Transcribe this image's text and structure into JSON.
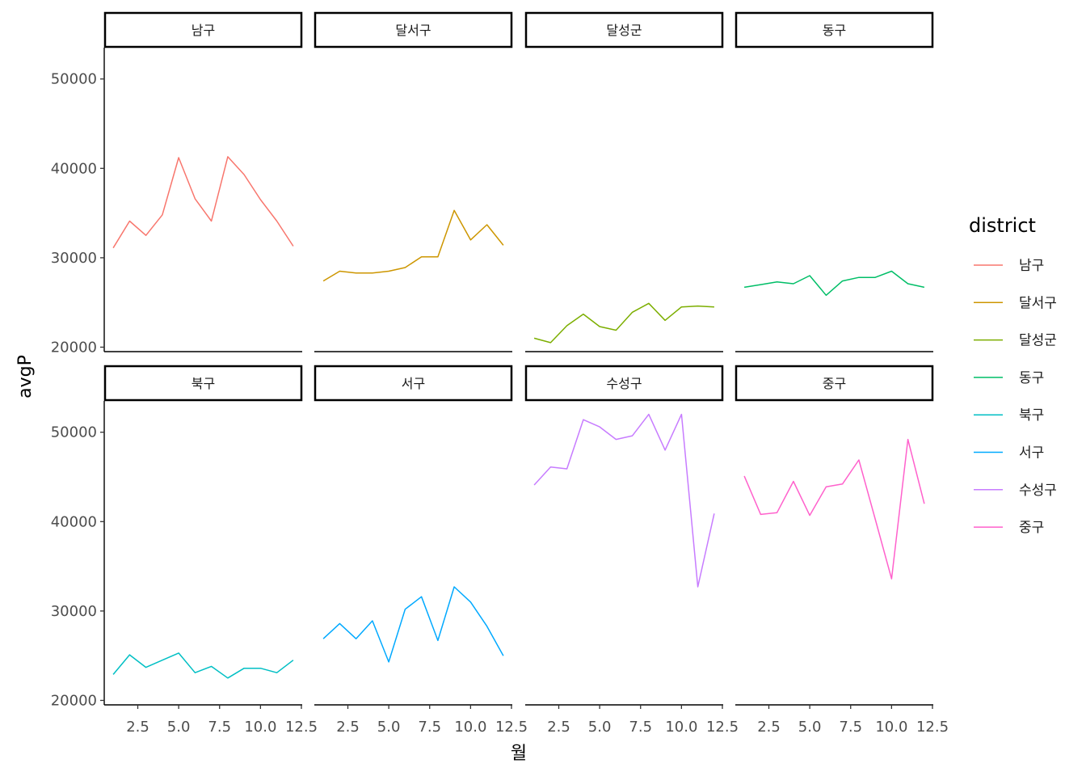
{
  "chart_data": {
    "type": "line",
    "xlabel": "월",
    "ylabel": "avgP",
    "legend_title": "district",
    "legend_position": "right",
    "facet_rows": 2,
    "facet_cols": 4,
    "xlim": [
      0.45,
      12.55
    ],
    "ylim": [
      19500,
      53500
    ],
    "x_ticks": [
      2.5,
      5.0,
      7.5,
      10.0,
      12.5
    ],
    "x_tick_labels": [
      "2.5",
      "5.0",
      "7.5",
      "10.0",
      "12.5"
    ],
    "y_ticks": [
      20000,
      30000,
      40000,
      50000
    ],
    "y_tick_labels": [
      "20000",
      "30000",
      "40000",
      "50000"
    ],
    "grid": false,
    "x": [
      1,
      2,
      3,
      4,
      5,
      6,
      7,
      8,
      9,
      10,
      11,
      12
    ],
    "series": [
      {
        "name": "남구",
        "color": "#F8766D",
        "values": [
          31100,
          34100,
          32500,
          34800,
          41200,
          36600,
          34100,
          41300,
          39300,
          36500,
          34100,
          31300
        ]
      },
      {
        "name": "달서구",
        "color": "#CD9600",
        "values": [
          27400,
          28500,
          28300,
          28300,
          28500,
          28900,
          30100,
          30100,
          35300,
          32000,
          33700,
          31400
        ]
      },
      {
        "name": "달성군",
        "color": "#7CAE00",
        "values": [
          21000,
          20500,
          22400,
          23700,
          22300,
          21900,
          23900,
          24900,
          23000,
          24500,
          24600,
          24500
        ]
      },
      {
        "name": "동구",
        "color": "#00BE67",
        "values": [
          26700,
          27000,
          27300,
          27100,
          28000,
          25800,
          27400,
          27800,
          27800,
          28500,
          27100,
          26700
        ]
      },
      {
        "name": "북구",
        "color": "#00BFC4",
        "values": [
          22900,
          25100,
          23700,
          24500,
          25300,
          23100,
          23800,
          22500,
          23600,
          23600,
          23100,
          24500
        ]
      },
      {
        "name": "서구",
        "color": "#00A9FF",
        "values": [
          26900,
          28600,
          26900,
          28900,
          24300,
          30200,
          31600,
          26700,
          32700,
          31000,
          28300,
          25000
        ]
      },
      {
        "name": "수성구",
        "color": "#C77CFF",
        "values": [
          44100,
          46100,
          45900,
          51400,
          50600,
          49200,
          49600,
          52000,
          48000,
          52000,
          32700,
          40900
        ]
      },
      {
        "name": "중구",
        "color": "#FF61CC",
        "values": [
          45100,
          40800,
          41000,
          44500,
          40700,
          43900,
          44200,
          46900,
          40300,
          33600,
          49200,
          42000
        ]
      }
    ]
  }
}
